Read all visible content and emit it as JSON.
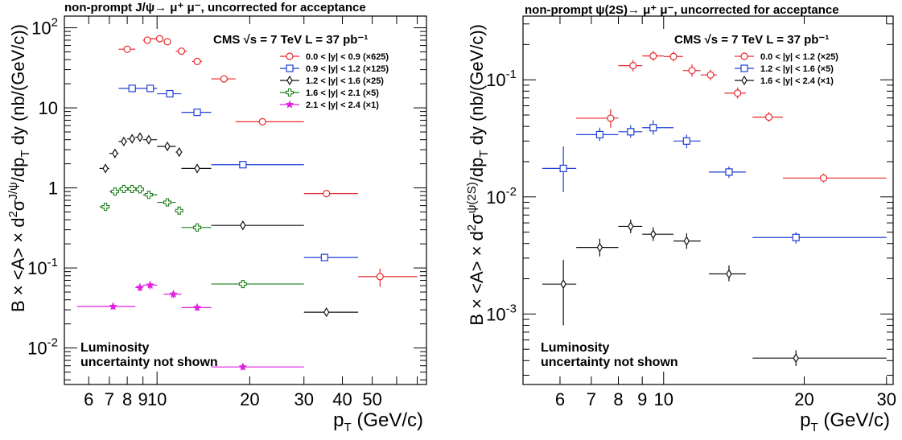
{
  "chart_data": [
    {
      "type": "scatter",
      "title": "non-prompt J/ψ→ μ⁺ μ⁻, uncorrected for acceptance",
      "experiment": "CMS  √s = 7 TeV  L = 37 pb⁻¹",
      "xlabel": "p_T (GeV/c)",
      "ylabel": "B × <A> × d²σ^{J/ψ}/dp_T dy (nb/(GeV/c))",
      "x_scale": "log",
      "y_scale": "log",
      "xlim": [
        5.0,
        75.0
      ],
      "ylim": [
        0.0035,
        140
      ],
      "x_ticks": [
        6,
        7,
        8,
        9,
        10,
        20,
        30,
        40,
        50
      ],
      "x_tick_labels": [
        "6",
        "7",
        "8",
        "9",
        "10",
        "20",
        "30",
        "40",
        "50"
      ],
      "y_ticks": [
        0.01,
        0.1,
        1,
        10,
        100
      ],
      "y_tick_labels": [
        {
          "base": "10",
          "exp": "-2"
        },
        {
          "base": "10",
          "exp": "-1"
        },
        {
          "base": "1",
          "exp": ""
        },
        {
          "base": "10",
          "exp": ""
        },
        {
          "base": "10",
          "exp": "2"
        }
      ],
      "legend_position": "top-right",
      "annotation": [
        "Luminosity",
        "uncertainty not shown"
      ],
      "series": [
        {
          "name": "0.0 < |y| < 0.9 (×625)",
          "color": "#e8292e",
          "marker": "circle",
          "points": [
            {
              "x": 8.0,
              "xlo": 7.5,
              "xhi": 8.5,
              "y": 54,
              "ylo": 50,
              "yhi": 58
            },
            {
              "x": 9.3,
              "xlo": 9.0,
              "xhi": 9.5,
              "y": 70,
              "ylo": 65,
              "yhi": 75
            },
            {
              "x": 10.2,
              "xlo": 9.5,
              "xhi": 10.5,
              "y": 73,
              "ylo": 68,
              "yhi": 78
            },
            {
              "x": 10.8,
              "xlo": 10.5,
              "xhi": 11.0,
              "y": 67,
              "ylo": 62,
              "yhi": 72
            },
            {
              "x": 12.0,
              "xlo": 11.5,
              "xhi": 12.5,
              "y": 51,
              "ylo": 47,
              "yhi": 55
            },
            {
              "x": 13.5,
              "xlo": 13.0,
              "xhi": 14.0,
              "y": 38,
              "ylo": 35,
              "yhi": 41
            },
            {
              "x": 16.5,
              "xlo": 15.0,
              "xhi": 18.0,
              "y": 23,
              "ylo": 21,
              "yhi": 25
            },
            {
              "x": 22.0,
              "xlo": 18.0,
              "xhi": 30.0,
              "y": 6.7,
              "ylo": 6.2,
              "yhi": 7.2
            },
            {
              "x": 35.5,
              "xlo": 30.0,
              "xhi": 45.0,
              "y": 0.85,
              "ylo": 0.78,
              "yhi": 0.92
            },
            {
              "x": 53.0,
              "xlo": 45.0,
              "xhi": 70.0,
              "y": 0.078,
              "ylo": 0.058,
              "yhi": 0.098
            }
          ]
        },
        {
          "name": "0.9 < |y| < 1.2 (×125)",
          "color": "#1f3fd6",
          "marker": "square",
          "points": [
            {
              "x": 8.3,
              "xlo": 7.5,
              "xhi": 9.0,
              "y": 17.5,
              "ylo": 16.5,
              "yhi": 18.5
            },
            {
              "x": 9.5,
              "xlo": 9.0,
              "xhi": 10.0,
              "y": 17.5,
              "ylo": 16.5,
              "yhi": 18.5
            },
            {
              "x": 11.0,
              "xlo": 10.0,
              "xhi": 12.0,
              "y": 15,
              "ylo": 14,
              "yhi": 16
            },
            {
              "x": 13.5,
              "xlo": 12.0,
              "xhi": 15.0,
              "y": 8.8,
              "ylo": 8.2,
              "yhi": 9.4
            },
            {
              "x": 19.0,
              "xlo": 15.0,
              "xhi": 30.0,
              "y": 1.95,
              "ylo": 1.8,
              "yhi": 2.1
            },
            {
              "x": 35.0,
              "xlo": 30.0,
              "xhi": 45.0,
              "y": 0.135,
              "ylo": 0.122,
              "yhi": 0.148
            }
          ]
        },
        {
          "name": "1.2 < |y| < 1.6 (×25)",
          "color": "#111111",
          "marker": "diamond",
          "points": [
            {
              "x": 6.8,
              "xlo": 6.5,
              "xhi": 7.0,
              "y": 1.75,
              "ylo": 1.6,
              "yhi": 1.9
            },
            {
              "x": 7.3,
              "xlo": 7.0,
              "xhi": 7.5,
              "y": 2.7,
              "ylo": 2.5,
              "yhi": 2.9
            },
            {
              "x": 7.8,
              "xlo": 7.5,
              "xhi": 8.0,
              "y": 3.8,
              "ylo": 3.5,
              "yhi": 4.1
            },
            {
              "x": 8.3,
              "xlo": 8.0,
              "xhi": 8.5,
              "y": 4.1,
              "ylo": 3.8,
              "yhi": 4.4
            },
            {
              "x": 8.8,
              "xlo": 8.5,
              "xhi": 9.0,
              "y": 4.3,
              "ylo": 4.0,
              "yhi": 4.6
            },
            {
              "x": 9.4,
              "xlo": 9.0,
              "xhi": 10.0,
              "y": 4.0,
              "ylo": 3.7,
              "yhi": 4.3
            },
            {
              "x": 10.8,
              "xlo": 10.0,
              "xhi": 11.5,
              "y": 3.3,
              "ylo": 3.05,
              "yhi": 3.55
            },
            {
              "x": 11.8,
              "xlo": 11.5,
              "xhi": 12.0,
              "y": 2.8,
              "ylo": 2.6,
              "yhi": 3.0
            },
            {
              "x": 13.5,
              "xlo": 12.0,
              "xhi": 15.0,
              "y": 1.75,
              "ylo": 1.6,
              "yhi": 1.9
            },
            {
              "x": 19.0,
              "xlo": 15.0,
              "xhi": 30.0,
              "y": 0.34,
              "ylo": 0.31,
              "yhi": 0.37
            },
            {
              "x": 35.5,
              "xlo": 30.0,
              "xhi": 45.0,
              "y": 0.028,
              "ylo": 0.0255,
              "yhi": 0.0305
            }
          ]
        },
        {
          "name": "1.6 < |y| < 2.1 (×5)",
          "color": "#1e7d1e",
          "marker": "cross",
          "points": [
            {
              "x": 6.8,
              "xlo": 6.5,
              "xhi": 7.0,
              "y": 0.58,
              "ylo": 0.53,
              "yhi": 0.63
            },
            {
              "x": 7.3,
              "xlo": 7.0,
              "xhi": 7.5,
              "y": 0.9,
              "ylo": 0.83,
              "yhi": 0.97
            },
            {
              "x": 7.8,
              "xlo": 7.5,
              "xhi": 8.0,
              "y": 0.97,
              "ylo": 0.9,
              "yhi": 1.04
            },
            {
              "x": 8.3,
              "xlo": 8.0,
              "xhi": 8.5,
              "y": 0.97,
              "ylo": 0.9,
              "yhi": 1.04
            },
            {
              "x": 8.8,
              "xlo": 8.5,
              "xhi": 9.0,
              "y": 0.96,
              "ylo": 0.89,
              "yhi": 1.03
            },
            {
              "x": 9.4,
              "xlo": 9.0,
              "xhi": 10.0,
              "y": 0.82,
              "ylo": 0.76,
              "yhi": 0.88
            },
            {
              "x": 10.8,
              "xlo": 10.0,
              "xhi": 11.5,
              "y": 0.66,
              "ylo": 0.61,
              "yhi": 0.71
            },
            {
              "x": 11.8,
              "xlo": 11.5,
              "xhi": 12.0,
              "y": 0.52,
              "ylo": 0.48,
              "yhi": 0.56
            },
            {
              "x": 13.5,
              "xlo": 12.0,
              "xhi": 15.0,
              "y": 0.32,
              "ylo": 0.29,
              "yhi": 0.35
            },
            {
              "x": 19.0,
              "xlo": 15.0,
              "xhi": 30.0,
              "y": 0.063,
              "ylo": 0.058,
              "yhi": 0.068
            }
          ]
        },
        {
          "name": "2.1 < |y| < 2.4 (×1)",
          "color": "#e020e0",
          "marker": "star",
          "points": [
            {
              "x": 7.2,
              "xlo": 5.5,
              "xhi": 8.5,
              "y": 0.033,
              "ylo": 0.03,
              "yhi": 0.036
            },
            {
              "x": 8.8,
              "xlo": 8.5,
              "xhi": 9.0,
              "y": 0.057,
              "ylo": 0.051,
              "yhi": 0.064
            },
            {
              "x": 9.5,
              "xlo": 9.0,
              "xhi": 10.0,
              "y": 0.061,
              "ylo": 0.054,
              "yhi": 0.068
            },
            {
              "x": 11.3,
              "xlo": 10.5,
              "xhi": 12.0,
              "y": 0.047,
              "ylo": 0.042,
              "yhi": 0.052
            },
            {
              "x": 13.5,
              "xlo": 12.0,
              "xhi": 15.0,
              "y": 0.032,
              "ylo": 0.029,
              "yhi": 0.035
            },
            {
              "x": 19.0,
              "xlo": 15.0,
              "xhi": 30.0,
              "y": 0.0058,
              "ylo": 0.0053,
              "yhi": 0.0063
            }
          ]
        }
      ]
    },
    {
      "type": "scatter",
      "title": "non-prompt ψ(2S)→ μ⁺ μ⁻, uncorrected for acceptance",
      "experiment": "CMS  √s = 7 TeV  L = 37 pb⁻¹",
      "xlabel": "p_T (GeV/c)",
      "ylabel": "B × <A> × d²σ^{ψ(2S)}/dp_T dy (nb/(GeV/c))",
      "x_scale": "log",
      "y_scale": "log",
      "xlim": [
        5.0,
        31.0
      ],
      "ylim": [
        0.00025,
        0.35
      ],
      "x_ticks": [
        6,
        7,
        8,
        9,
        10,
        20,
        30
      ],
      "x_tick_labels": [
        "6",
        "7",
        "8",
        "9",
        "10",
        "20",
        "30"
      ],
      "y_ticks": [
        0.001,
        0.01,
        0.1
      ],
      "y_tick_labels": [
        {
          "base": "10",
          "exp": "-3"
        },
        {
          "base": "10",
          "exp": "-2"
        },
        {
          "base": "10",
          "exp": "-1"
        }
      ],
      "legend_position": "top-right",
      "annotation": [
        "Luminosity",
        "uncertainty not shown"
      ],
      "series": [
        {
          "name": "0.0 < |y| < 1.2 (×25)",
          "color": "#e8292e",
          "marker": "circle",
          "points": [
            {
              "x": 7.7,
              "xlo": 6.5,
              "xhi": 8.0,
              "y": 0.047,
              "ylo": 0.039,
              "yhi": 0.056
            },
            {
              "x": 8.6,
              "xlo": 8.0,
              "xhi": 9.0,
              "y": 0.132,
              "ylo": 0.118,
              "yhi": 0.147
            },
            {
              "x": 9.5,
              "xlo": 9.0,
              "xhi": 10.0,
              "y": 0.16,
              "ylo": 0.145,
              "yhi": 0.176
            },
            {
              "x": 10.5,
              "xlo": 10.0,
              "xhi": 11.0,
              "y": 0.158,
              "ylo": 0.143,
              "yhi": 0.174
            },
            {
              "x": 11.5,
              "xlo": 11.0,
              "xhi": 12.0,
              "y": 0.12,
              "ylo": 0.106,
              "yhi": 0.135
            },
            {
              "x": 12.6,
              "xlo": 12.0,
              "xhi": 13.0,
              "y": 0.11,
              "ylo": 0.099,
              "yhi": 0.122
            },
            {
              "x": 14.4,
              "xlo": 13.5,
              "xhi": 15.0,
              "y": 0.077,
              "ylo": 0.069,
              "yhi": 0.086
            },
            {
              "x": 16.8,
              "xlo": 15.5,
              "xhi": 18.0,
              "y": 0.048,
              "ylo": 0.044,
              "yhi": 0.053
            },
            {
              "x": 22.0,
              "xlo": 18.0,
              "xhi": 30.0,
              "y": 0.0145,
              "ylo": 0.0133,
              "yhi": 0.0158
            }
          ]
        },
        {
          "name": "1.2 < |y| < 1.6 (×5)",
          "color": "#1f3fd6",
          "marker": "square",
          "points": [
            {
              "x": 6.1,
              "xlo": 5.5,
              "xhi": 6.5,
              "y": 0.0175,
              "ylo": 0.011,
              "yhi": 0.027
            },
            {
              "x": 7.3,
              "xlo": 6.5,
              "xhi": 8.0,
              "y": 0.034,
              "ylo": 0.03,
              "yhi": 0.039
            },
            {
              "x": 8.5,
              "xlo": 8.0,
              "xhi": 9.0,
              "y": 0.036,
              "ylo": 0.032,
              "yhi": 0.041
            },
            {
              "x": 9.5,
              "xlo": 9.0,
              "xhi": 10.5,
              "y": 0.039,
              "ylo": 0.034,
              "yhi": 0.045
            },
            {
              "x": 11.2,
              "xlo": 10.5,
              "xhi": 12.0,
              "y": 0.03,
              "ylo": 0.026,
              "yhi": 0.034
            },
            {
              "x": 13.8,
              "xlo": 12.5,
              "xhi": 15.0,
              "y": 0.0163,
              "ylo": 0.0145,
              "yhi": 0.0182
            },
            {
              "x": 19.2,
              "xlo": 15.5,
              "xhi": 30.0,
              "y": 0.0045,
              "ylo": 0.004,
              "yhi": 0.005
            }
          ]
        },
        {
          "name": "1.6 < |y| < 2.4 (×1)",
          "color": "#111111",
          "marker": "diamond",
          "points": [
            {
              "x": 6.1,
              "xlo": 5.5,
              "xhi": 6.5,
              "y": 0.0018,
              "ylo": 0.0008,
              "yhi": 0.0029
            },
            {
              "x": 7.3,
              "xlo": 6.5,
              "xhi": 8.0,
              "y": 0.0037,
              "ylo": 0.0031,
              "yhi": 0.0044
            },
            {
              "x": 8.5,
              "xlo": 8.0,
              "xhi": 9.0,
              "y": 0.0056,
              "ylo": 0.0049,
              "yhi": 0.0064
            },
            {
              "x": 9.5,
              "xlo": 9.0,
              "xhi": 10.5,
              "y": 0.0048,
              "ylo": 0.0042,
              "yhi": 0.0055
            },
            {
              "x": 11.2,
              "xlo": 10.5,
              "xhi": 12.0,
              "y": 0.0042,
              "ylo": 0.0036,
              "yhi": 0.0049
            },
            {
              "x": 13.8,
              "xlo": 12.5,
              "xhi": 15.0,
              "y": 0.0022,
              "ylo": 0.0019,
              "yhi": 0.0026
            },
            {
              "x": 19.2,
              "xlo": 15.5,
              "xhi": 30.0,
              "y": 0.00042,
              "ylo": 0.00036,
              "yhi": 0.00049
            }
          ]
        }
      ]
    }
  ]
}
